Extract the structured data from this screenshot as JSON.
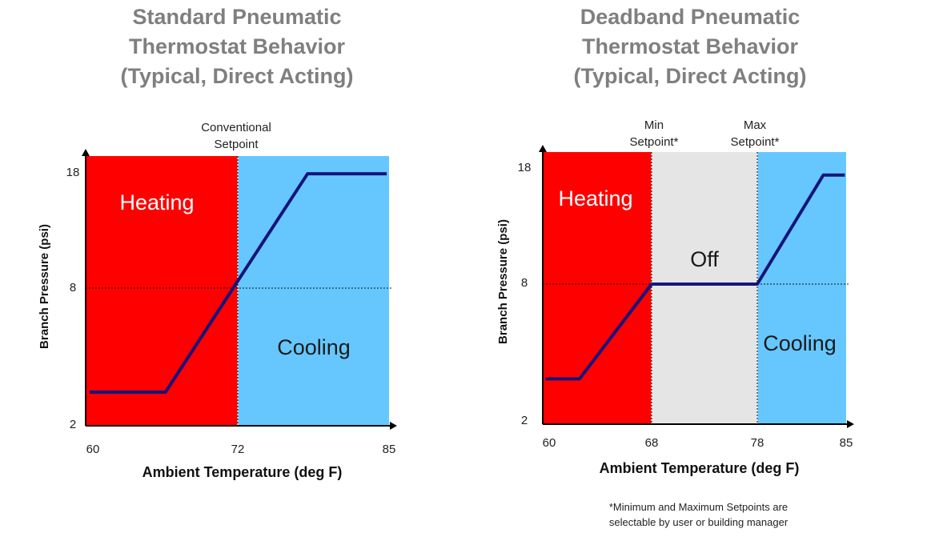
{
  "chart_data": [
    {
      "type": "line",
      "title": "Standard Pneumatic\nThermostat Behavior\n(Typical, Direct Acting)",
      "xlabel": "Ambient Temperature (deg F)",
      "ylabel": "Branch Pressure (psi)",
      "xlim": [
        60,
        85
      ],
      "ylim": [
        2,
        18
      ],
      "x_ticks": [
        "60",
        "72",
        "85"
      ],
      "y_ticks": [
        "2",
        "8",
        "18"
      ],
      "regions": [
        {
          "label": "Heating",
          "x_start": 60,
          "x_end": 72,
          "color": "#ff0000"
        },
        {
          "label": "Cooling",
          "x_start": 72,
          "x_end": 85,
          "color": "#66c7ff"
        }
      ],
      "setpoint_markers": [
        {
          "label": "Conventional\nSetpoint",
          "x": 72
        }
      ],
      "reference_line_y": 8,
      "series": [
        {
          "name": "Branch Pressure",
          "x": [
            60.3,
            66.3,
            78,
            84.8
          ],
          "y": [
            2.8,
            2.8,
            17.4,
            17.4
          ]
        }
      ],
      "line_color": "#16147a"
    },
    {
      "type": "line",
      "title": "Deadband Pneumatic\nThermostat Behavior\n(Typical, Direct Acting)",
      "xlabel": "Ambient Temperature (deg F)",
      "ylabel": "Branch Pressure (psi)",
      "xlim": [
        60,
        85
      ],
      "ylim": [
        2,
        18
      ],
      "x_ticks": [
        "60",
        "68",
        "78",
        "85"
      ],
      "y_ticks": [
        "2",
        "8",
        "18"
      ],
      "regions": [
        {
          "label": "Heating",
          "x_start": 60,
          "x_end": 68,
          "color": "#ff0000"
        },
        {
          "label": "Off",
          "x_start": 68,
          "x_end": 78,
          "color": "#e5e5e5"
        },
        {
          "label": "Cooling",
          "x_start": 78,
          "x_end": 85,
          "color": "#66c7ff"
        }
      ],
      "setpoint_markers": [
        {
          "label": "Min\nSetpoint*",
          "x": 68
        },
        {
          "label": "Max\nSetpoint*",
          "x": 78
        }
      ],
      "reference_line_y": 8,
      "series": [
        {
          "name": "Branch Pressure",
          "x": [
            60.2,
            62.7,
            68,
            78,
            83.2,
            84.9
          ],
          "y": [
            3.2,
            3.2,
            8,
            8,
            17.4,
            17.4
          ]
        }
      ],
      "line_color": "#16147a",
      "footnote": "*Minimum and Maximum Setpoints are\nselectable by user or building manager"
    }
  ]
}
